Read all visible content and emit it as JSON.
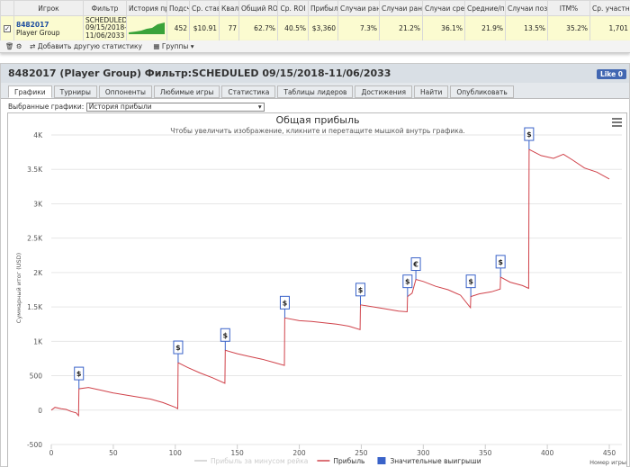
{
  "table": {
    "headers": [
      "Игрок",
      "Фильтр",
      "История при",
      "Подсче",
      "Ср. став",
      "Квали",
      "Общий ROI",
      "Ср. ROI",
      "Прибыль",
      "Случаи ранн",
      "Случаи ранн",
      "Случаи сред",
      "Средние/поз",
      "Случаи позд",
      "ITM%",
      "Ср. участни"
    ],
    "player": [
      "8482017",
      "Player Group"
    ],
    "filter": [
      "SCHEDULED",
      "09/15/2018-",
      "11/06/2033"
    ],
    "cells": [
      "452",
      "$10.91",
      "77",
      "62.7%",
      "40.5%",
      "$3,360",
      "7.3%",
      "21.2%",
      "36.1%",
      "21.9%",
      "13.5%",
      "35.2%",
      "1,701"
    ]
  },
  "toolbar": {
    "add_stat": "Добавить другую статистику",
    "groups": "Группы"
  },
  "panel": {
    "title": "8482017 (Player Group) Фильтр:SCHEDULED 09/15/2018-11/06/2033",
    "like": "Like 0",
    "tabs": [
      "Графики",
      "Турниры",
      "Оппоненты",
      "Любимые игры",
      "Статистика",
      "Таблицы лидеров",
      "Достижения",
      "Найти",
      "Опубликовать"
    ],
    "selector_label": "Выбранные графики:",
    "selector_value": "История прибыли"
  },
  "chart_data": {
    "type": "line",
    "title": "Общая прибыль",
    "subtitle": "Чтобы увеличить изображение, кликните и перетащите мышкой внутрь графика.",
    "ylabel": "Суммарный итог (USD)",
    "xlabel": "Номер игры",
    "x": [
      0,
      3,
      8,
      12,
      16,
      20,
      22,
      22.3,
      30,
      40,
      50,
      60,
      70,
      80,
      90,
      100,
      102,
      102.3,
      110,
      120,
      130,
      140,
      140.3,
      150,
      160,
      170,
      180,
      188,
      188.3,
      200,
      210,
      220,
      230,
      240,
      249,
      249.3,
      260,
      270,
      280,
      287,
      287.3,
      291,
      294,
      300,
      310,
      320,
      330,
      338,
      338.3,
      345,
      355,
      362,
      362.3,
      370,
      380,
      385,
      385.3,
      395,
      405,
      413,
      420,
      430,
      440,
      450
    ],
    "series": [
      {
        "name": "Прибыль",
        "color": "#d0424a",
        "values": [
          0,
          40,
          20,
          10,
          -20,
          -40,
          -80,
          310,
          330,
          290,
          250,
          220,
          190,
          160,
          110,
          40,
          20,
          690,
          620,
          540,
          470,
          390,
          870,
          820,
          780,
          740,
          690,
          650,
          1340,
          1300,
          1290,
          1270,
          1250,
          1220,
          1170,
          1530,
          1500,
          1470,
          1440,
          1430,
          1650,
          1700,
          1900,
          1870,
          1800,
          1750,
          1670,
          1490,
          1650,
          1690,
          1720,
          1760,
          1935,
          1860,
          1810,
          1770,
          3790,
          3700,
          3660,
          3720,
          3640,
          3520,
          3460,
          3360
        ]
      }
    ],
    "legend": [
      {
        "name": "Прибыль за минусом рейка",
        "color": "#cccccc"
      },
      {
        "name": "Прибыль",
        "color": "#d0424a"
      },
      {
        "name": "Значительные выигрыши",
        "color": "#3a63c9"
      }
    ],
    "flags": [
      {
        "x": 22.3,
        "value": 310,
        "label": "$"
      },
      {
        "x": 102.3,
        "value": 690,
        "label": "$"
      },
      {
        "x": 140.3,
        "value": 870,
        "label": "$"
      },
      {
        "x": 188.3,
        "value": 1340,
        "label": "$"
      },
      {
        "x": 249.3,
        "value": 1530,
        "label": "$"
      },
      {
        "x": 287.3,
        "value": 1650,
        "label": "$"
      },
      {
        "x": 294,
        "value": 1900,
        "label": "€"
      },
      {
        "x": 338.3,
        "value": 1650,
        "label": "$"
      },
      {
        "x": 362.3,
        "value": 1935,
        "label": "$"
      },
      {
        "x": 385.3,
        "value": 3790,
        "label": "$"
      }
    ],
    "xlim": [
      0,
      450
    ],
    "ylim": [
      -500,
      4000
    ],
    "xticks": [
      0,
      50,
      100,
      150,
      200,
      250,
      300,
      350,
      400,
      450
    ],
    "yticks": [
      -500,
      0,
      500,
      {
        "value": 1000,
        "label": "1K"
      },
      {
        "value": 1500,
        "label": "1.5K"
      },
      {
        "value": 2000,
        "label": "2K"
      },
      {
        "value": 2500,
        "label": "2.5K"
      },
      {
        "value": 3000,
        "label": "3K"
      },
      {
        "value": 3500,
        "label": "3.5K"
      },
      {
        "value": 4000,
        "label": "4K"
      }
    ],
    "grid": true
  }
}
